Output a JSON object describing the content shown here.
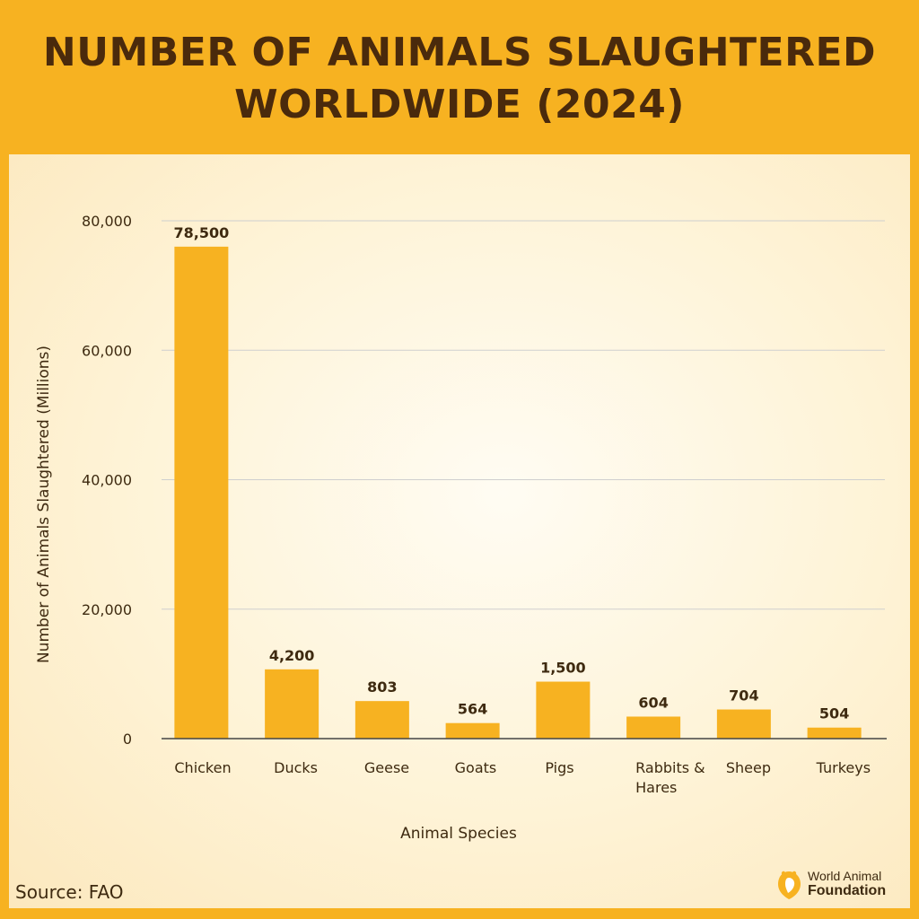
{
  "header": {
    "title_line1": "NUMBER OF ANIMALS SLAUGHTERED",
    "title_line2": "WORLDWIDE (2024)"
  },
  "footer": {
    "source": "Source: FAO",
    "brand_line1": "World Animal",
    "brand_line2": "Foundation"
  },
  "colors": {
    "background": "#F7B221",
    "bar": "#F7B221",
    "text": "#3E2A10",
    "title": "#4A2A0C"
  },
  "icons": [
    "paw-heart-logo-icon"
  ],
  "chart_data": {
    "type": "bar",
    "title": "NUMBER OF ANIMALS SLAUGHTERED WORLDWIDE (2024)",
    "xlabel": "Animal Species",
    "ylabel": "Number of Animals Slaughtered (Millions)",
    "categories": [
      "Chicken",
      "Ducks",
      "Geese",
      "Goats",
      "Pigs",
      "Rabbits & Hares",
      "Sheep",
      "Turkeys"
    ],
    "category_lines": [
      [
        "Chicken"
      ],
      [
        "Ducks"
      ],
      [
        "Geese"
      ],
      [
        "Goats"
      ],
      [
        "Pigs"
      ],
      [
        "Rabbits &",
        "Hares"
      ],
      [
        "Sheep"
      ],
      [
        "Turkeys"
      ]
    ],
    "values": [
      78500,
      4200,
      803,
      564,
      1500,
      604,
      704,
      504
    ],
    "value_labels": [
      "78,500",
      "4,200",
      "803",
      "564",
      "1,500",
      "604",
      "704",
      "504"
    ],
    "bar_heights_shown": [
      76000,
      10700,
      5800,
      2400,
      8800,
      3400,
      4500,
      1700
    ],
    "yticks": [
      0,
      20000,
      40000,
      60000,
      80000
    ],
    "ytick_labels": [
      "0",
      "20,000",
      "40,000",
      "60,000",
      "80,000"
    ],
    "ylim": [
      0,
      80000
    ],
    "grid": true,
    "legend": "none"
  }
}
